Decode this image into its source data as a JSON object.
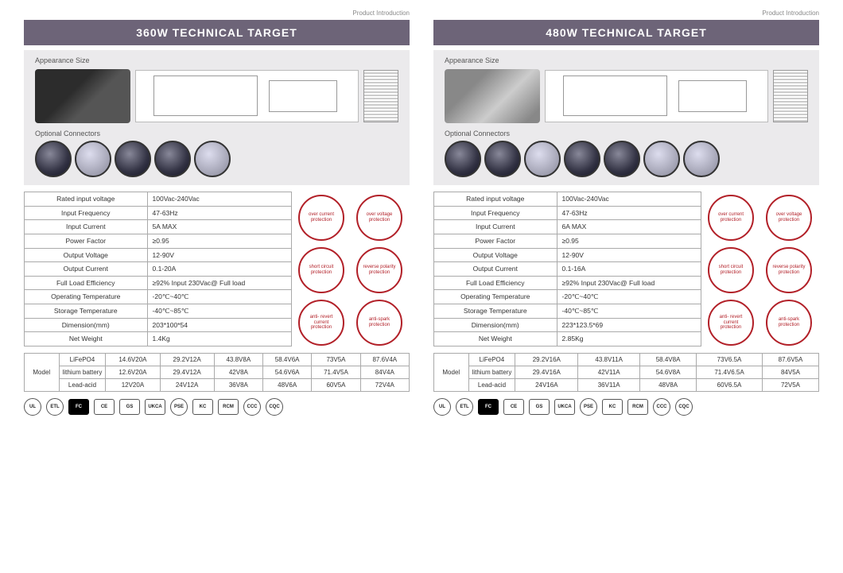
{
  "header_text": "Product Introduction",
  "appearance_label": "Appearance Size",
  "connectors_label": "Optional  Connectors",
  "model_header": "Model",
  "panels": [
    {
      "title": "360W  TECHNICAL TARGET",
      "specs": [
        [
          "Rated input voltage",
          "100Vac-240Vac"
        ],
        [
          "Input Frequency",
          "47-63Hz"
        ],
        [
          "Input Current",
          "5A MAX"
        ],
        [
          "Power Factor",
          "≥0.95"
        ],
        [
          "Output Voltage",
          "12-90V"
        ],
        [
          "Output Current",
          "0.1-20A"
        ],
        [
          "Full Load Efficiency",
          "≥92% Input 230Vac@ Full load"
        ],
        [
          "Operating Temperature",
          "-20℃~40℃"
        ],
        [
          "Storage Temperature",
          "-40℃~85℃"
        ],
        [
          "Dimension(mm)",
          "203*100*54"
        ],
        [
          "Net Weight",
          "1.4Kg"
        ]
      ],
      "models": [
        [
          "LiFePO4",
          "14.6V20A",
          "29.2V12A",
          "43.8V8A",
          "58.4V6A",
          "73V5A",
          "87.6V4A"
        ],
        [
          "lithium battery",
          "12.6V20A",
          "29.4V12A",
          "42V8A",
          "54.6V6A",
          "71.4V5A",
          "84V4A"
        ],
        [
          "Lead-acid",
          "12V20A",
          "24V12A",
          "36V8A",
          "48V6A",
          "60V5A",
          "72V4A"
        ]
      ]
    },
    {
      "title": "480W  TECHNICAL TARGET",
      "specs": [
        [
          "Rated input voltage",
          "100Vac-240Vac"
        ],
        [
          "Input Frequency",
          "47-63Hz"
        ],
        [
          "Input Current",
          "6A MAX"
        ],
        [
          "Power Factor",
          "≥0.95"
        ],
        [
          "Output Voltage",
          "12-90V"
        ],
        [
          "Output Current",
          "0.1-16A"
        ],
        [
          "Full Load Efficiency",
          "≥92% Input 230Vac@ Full load"
        ],
        [
          "Operating Temperature",
          "-20℃~40℃"
        ],
        [
          "Storage Temperature",
          "-40℃~85℃"
        ],
        [
          "Dimension(mm)",
          "223*123.5*69"
        ],
        [
          "Net Weight",
          "2.85Kg"
        ]
      ],
      "models": [
        [
          "LiFePO4",
          "29.2V16A",
          "43.8V11A",
          "58.4V8A",
          "73V6.5A",
          "87.6V5A"
        ],
        [
          "lithium battery",
          "29.4V16A",
          "42V11A",
          "54.6V8A",
          "71.4V6.5A",
          "84V5A"
        ],
        [
          "Lead-acid",
          "24V16A",
          "36V11A",
          "48V8A",
          "60V6.5A",
          "72V5A"
        ]
      ]
    }
  ],
  "protections": [
    "over current protection",
    "over voltage protection",
    "short circuit protection",
    "reverse polarity protection",
    "anti- revert current protection",
    "anti-spark protection"
  ],
  "certifications": [
    "UL",
    "ETL",
    "FC",
    "CE",
    "GS",
    "UKCA",
    "PSE",
    "KC",
    "RCM",
    "CCC",
    "CQC"
  ],
  "colors": {
    "title_bar_bg": "#6d6478",
    "accent": "#b22028",
    "panel_bg": "#ebeaec",
    "border": "#aaaaaa"
  }
}
